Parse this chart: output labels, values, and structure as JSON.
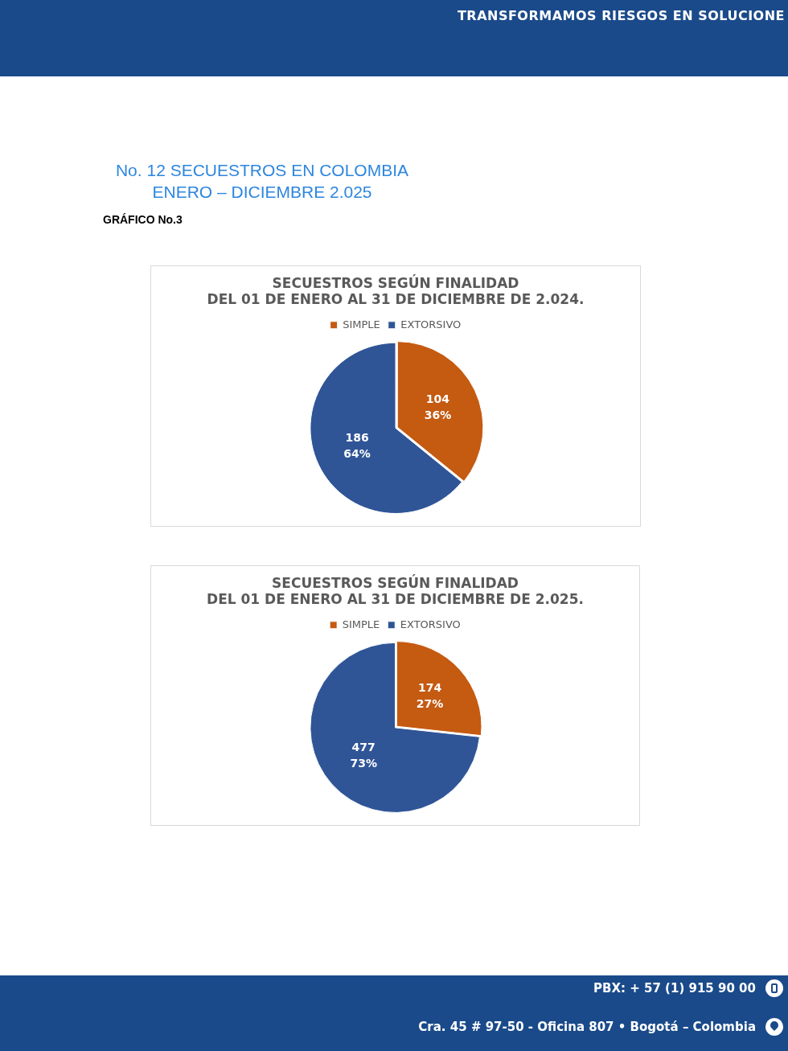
{
  "chart_data": [
    {
      "type": "pie",
      "title": "SECUESTROS SEGÚN FINALIDAD\nDEL 01 DE ENERO AL 31 DE DICIEMBRE DE 2.024.",
      "categories": [
        "SIMPLE",
        "EXTORSIVO"
      ],
      "values": [
        104,
        186
      ],
      "colors": [
        "#c55a11",
        "#2f5597"
      ],
      "value_labels": [
        "104\n36%",
        "186\n64%"
      ],
      "legend": "top",
      "annotations": [
        "TRANSFORMAMOS RIESGOS EN SOLUCIONE",
        "No. 12 SECUESTROS EN COLOMBIA\nENERO – DICIEMBRE 2.025",
        "GRÁFICO No.3"
      ]
    },
    {
      "type": "pie",
      "title": "SECUESTROS SEGÚN FINALIDAD\nDEL 01 DE ENERO AL 31 DE DICIEMBRE DE 2.025.",
      "categories": [
        "SIMPLE",
        "EXTORSIVO"
      ],
      "values": [
        174,
        477
      ],
      "colors": [
        "#c55a11",
        "#2f5597"
      ],
      "value_labels": [
        "174\n27%",
        "477\n73%"
      ],
      "legend": "top",
      "annotations": [
        "PBX: + 57 (1) 915 90 00",
        "Cra. 45 # 97-50 - Oficina 807 • Bogotá – Colombia"
      ]
    }
  ]
}
